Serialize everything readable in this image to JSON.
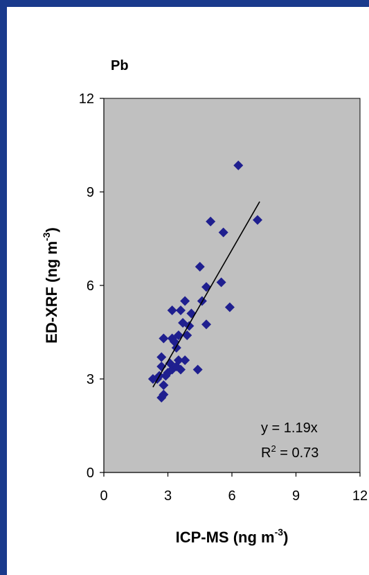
{
  "colors": {
    "page_background": "#1a3a8c",
    "plot_background": "#c0c0c0",
    "marker": "#1f1f8f",
    "trendline": "#000000"
  },
  "chart_data": {
    "type": "scatter",
    "title": "Pb",
    "xlabel": {
      "main": "ICP-MS (ng m",
      "sup": "-3",
      "tail": ")"
    },
    "ylabel": {
      "main": "ED-XRF (ng m",
      "sup": "-3",
      "tail": ")"
    },
    "xlim": [
      0,
      12
    ],
    "ylim": [
      0,
      12
    ],
    "xticks": [
      "0",
      "3",
      "6",
      "9",
      "12"
    ],
    "yticks": [
      "0",
      "3",
      "6",
      "9",
      "12"
    ],
    "grid": false,
    "marker": "diamond",
    "points": [
      [
        2.3,
        3.0
      ],
      [
        2.5,
        3.0
      ],
      [
        2.6,
        3.1
      ],
      [
        2.7,
        3.7
      ],
      [
        2.7,
        3.4
      ],
      [
        2.8,
        2.8
      ],
      [
        2.8,
        4.3
      ],
      [
        2.7,
        2.4
      ],
      [
        2.8,
        2.5
      ],
      [
        2.9,
        3.1
      ],
      [
        3.0,
        3.2
      ],
      [
        3.1,
        3.5
      ],
      [
        3.2,
        3.3
      ],
      [
        3.2,
        4.3
      ],
      [
        3.2,
        5.2
      ],
      [
        3.3,
        4.2
      ],
      [
        3.4,
        3.4
      ],
      [
        3.4,
        4.0
      ],
      [
        3.5,
        3.6
      ],
      [
        3.5,
        4.4
      ],
      [
        3.6,
        3.3
      ],
      [
        3.6,
        5.2
      ],
      [
        3.7,
        4.8
      ],
      [
        3.8,
        3.6
      ],
      [
        3.8,
        5.5
      ],
      [
        3.9,
        4.4
      ],
      [
        4.0,
        4.7
      ],
      [
        4.1,
        5.1
      ],
      [
        4.4,
        3.3
      ],
      [
        4.5,
        6.6
      ],
      [
        4.6,
        5.5
      ],
      [
        4.8,
        4.75
      ],
      [
        4.8,
        5.95
      ],
      [
        5.0,
        8.05
      ],
      [
        5.5,
        6.1
      ],
      [
        5.6,
        7.7
      ],
      [
        5.9,
        5.3
      ],
      [
        6.3,
        9.85
      ],
      [
        7.2,
        8.1
      ]
    ],
    "trendline": {
      "equation": "y = 1.19x",
      "r2_main": "R",
      "r2_sup": "2",
      "r2_tail": " = 0.73",
      "slope": 1.19,
      "x_range": [
        2.3,
        7.3
      ]
    }
  }
}
